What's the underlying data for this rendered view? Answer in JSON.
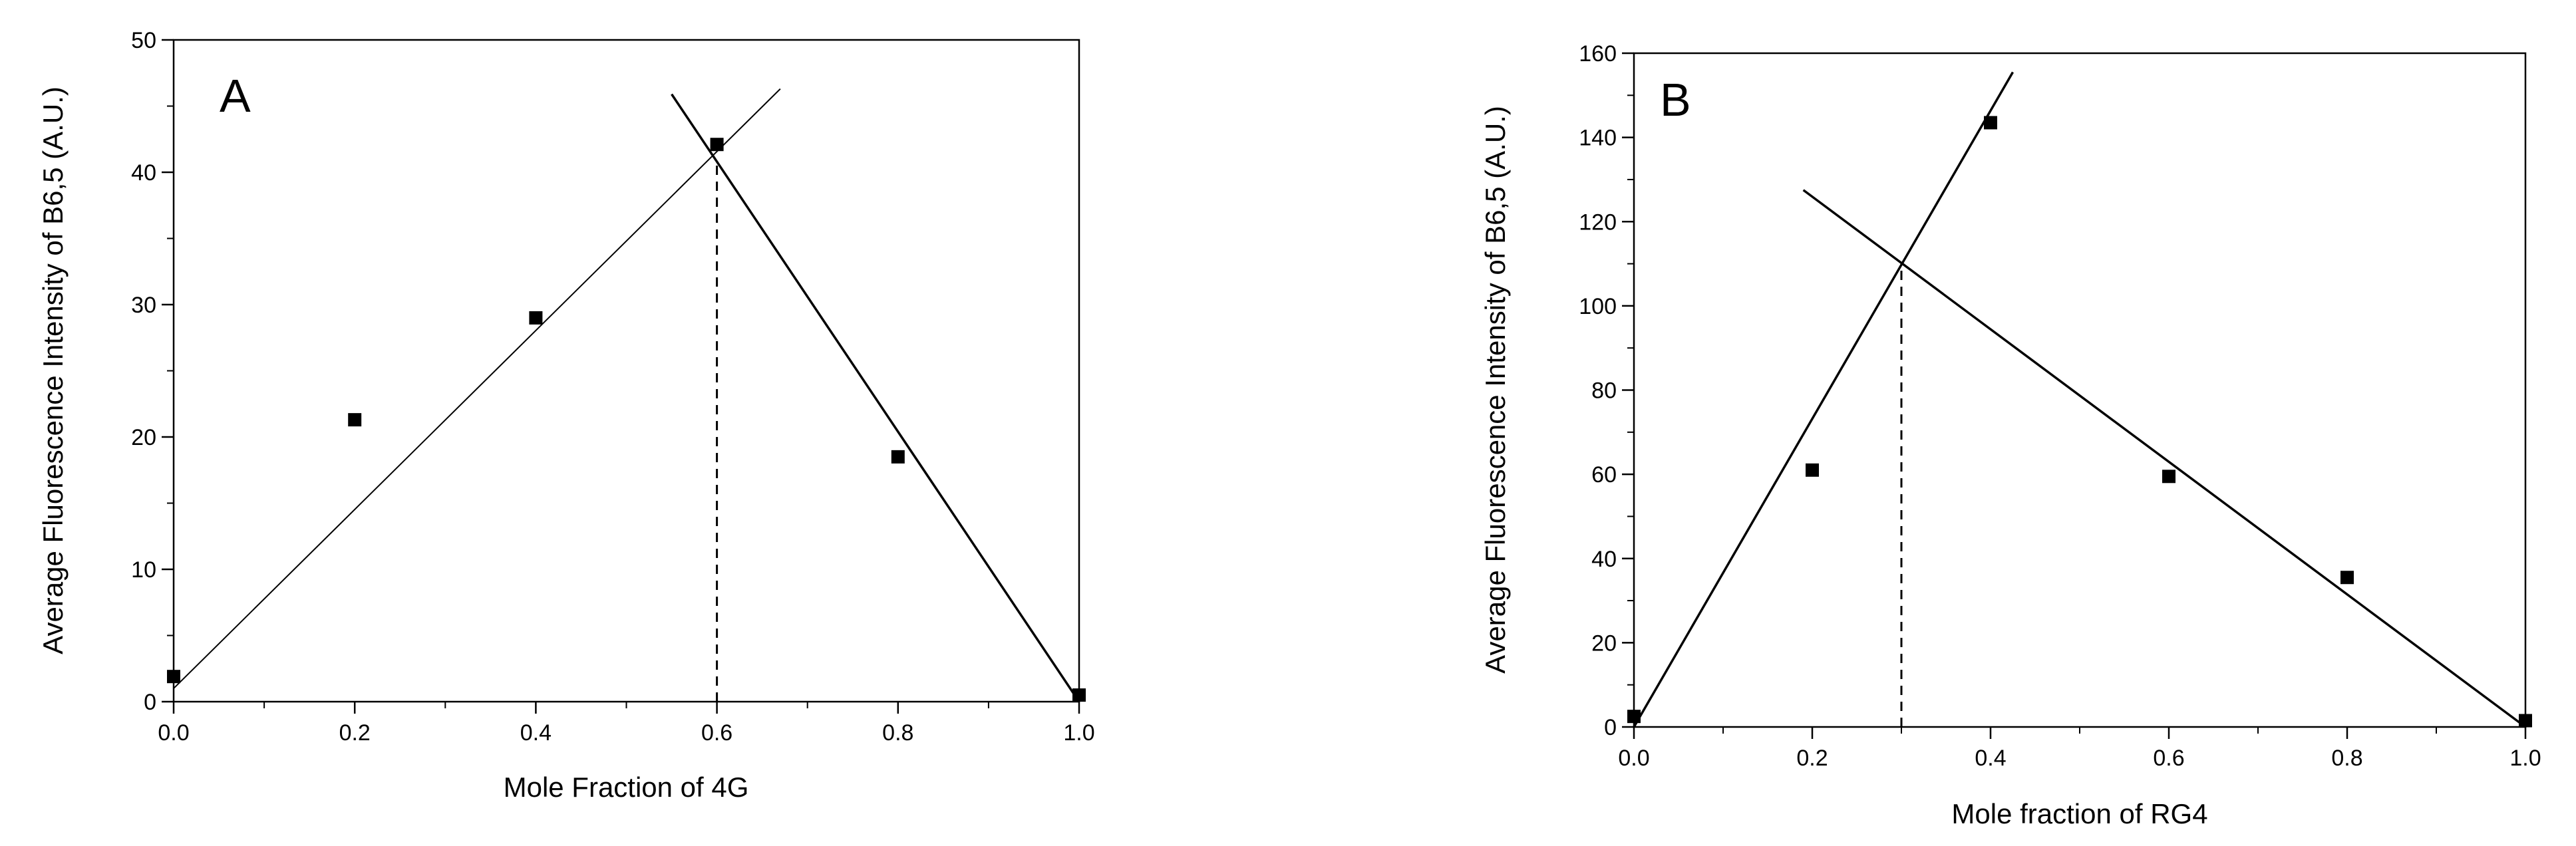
{
  "chart_data": [
    {
      "type": "scatter",
      "panel_label": "A",
      "xlabel": "Mole Fraction of 4G",
      "ylabel": "Average Fluorescence Intensity of B6,5 (A.U.)",
      "xlim": [
        0.0,
        1.0
      ],
      "ylim": [
        0,
        50
      ],
      "x_ticks": [
        0.0,
        0.2,
        0.4,
        0.6,
        0.8,
        1.0
      ],
      "x_tick_labels": [
        "0.0",
        "0.2",
        "0.4",
        "0.6",
        "0.8",
        "1.0"
      ],
      "y_ticks": [
        0,
        10,
        20,
        30,
        40,
        50
      ],
      "y_tick_labels": [
        "0",
        "10",
        "20",
        "30",
        "40",
        "50"
      ],
      "grid": false,
      "points": [
        {
          "x": 0.0,
          "y": 1.9
        },
        {
          "x": 0.2,
          "y": 21.3
        },
        {
          "x": 0.4,
          "y": 29.0
        },
        {
          "x": 0.6,
          "y": 42.1
        },
        {
          "x": 0.8,
          "y": 18.5
        },
        {
          "x": 1.0,
          "y": 0.5
        }
      ],
      "fit_lines": [
        {
          "x": [
            0.0,
            0.67
          ],
          "y": [
            1.0,
            46.3
          ]
        },
        {
          "x": [
            0.55,
            1.0
          ],
          "y": [
            45.9,
            0.0
          ]
        }
      ],
      "dashed_guide": {
        "x": 0.6,
        "y_from": 0,
        "y_to": 41.0
      }
    },
    {
      "type": "scatter",
      "panel_label": "B",
      "xlabel": "Mole fraction of RG4",
      "ylabel": "Average Fluorescence Intensity of B6,5 (A.U.)",
      "xlim": [
        0.0,
        1.0
      ],
      "ylim": [
        0,
        160
      ],
      "x_ticks": [
        0.0,
        0.2,
        0.4,
        0.6,
        0.8,
        1.0
      ],
      "x_tick_labels": [
        "0.0",
        "0.2",
        "0.4",
        "0.6",
        "0.8",
        "1.0"
      ],
      "y_ticks": [
        0,
        20,
        40,
        60,
        80,
        100,
        120,
        140,
        160
      ],
      "y_tick_labels": [
        "0",
        "20",
        "40",
        "60",
        "80",
        "100",
        "120",
        "140",
        "160"
      ],
      "grid": false,
      "points": [
        {
          "x": 0.0,
          "y": 2.5
        },
        {
          "x": 0.2,
          "y": 61.0
        },
        {
          "x": 0.4,
          "y": 143.5
        },
        {
          "x": 0.6,
          "y": 59.5
        },
        {
          "x": 0.8,
          "y": 35.5
        },
        {
          "x": 1.0,
          "y": 1.5
        }
      ],
      "fit_lines": [
        {
          "x": [
            0.0,
            0.425
          ],
          "y": [
            0.0,
            155.5
          ]
        },
        {
          "x": [
            0.19,
            1.0
          ],
          "y": [
            127.5,
            0.0
          ]
        }
      ],
      "dashed_guide": {
        "x": 0.3,
        "y_from": 0,
        "y_to": 110.0
      }
    }
  ]
}
